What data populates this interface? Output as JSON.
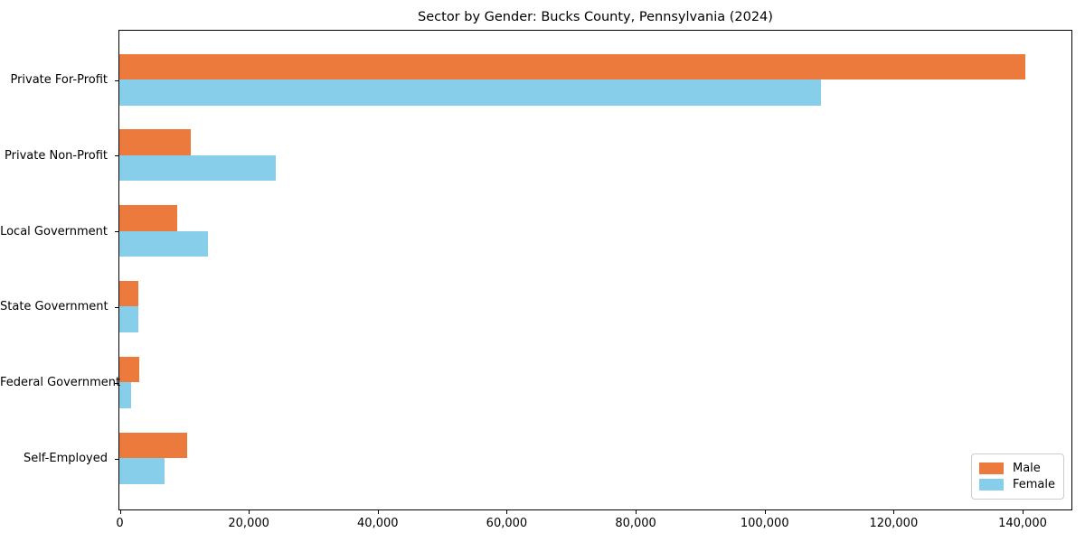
{
  "chart_data": {
    "type": "bar",
    "orientation": "horizontal",
    "title": "Sector by Gender: Bucks County, Pennsylvania (2024)",
    "categories": [
      "Private For-Profit",
      "Private Non-Profit",
      "Local Government",
      "State Government",
      "Federal Government",
      "Self-Employed"
    ],
    "series": [
      {
        "name": "Male",
        "color": "#EC7A3D",
        "values": [
          140500,
          11100,
          9000,
          3000,
          3100,
          10500
        ]
      },
      {
        "name": "Female",
        "color": "#87CEEB",
        "values": [
          108800,
          24200,
          13800,
          3000,
          1800,
          7000
        ]
      }
    ],
    "xlabel": "",
    "ylabel": "",
    "xlim": [
      0,
      147500
    ],
    "xticks": [
      0,
      20000,
      40000,
      60000,
      80000,
      100000,
      120000,
      140000
    ],
    "xtick_labels": [
      "0",
      "20,000",
      "40,000",
      "60,000",
      "80,000",
      "100,000",
      "120,000",
      "140,000"
    ],
    "legend": {
      "position": "lower-right"
    },
    "grid": false,
    "axis_color": "#000000",
    "text_color": "#000000",
    "background_color": "#ffffff"
  }
}
